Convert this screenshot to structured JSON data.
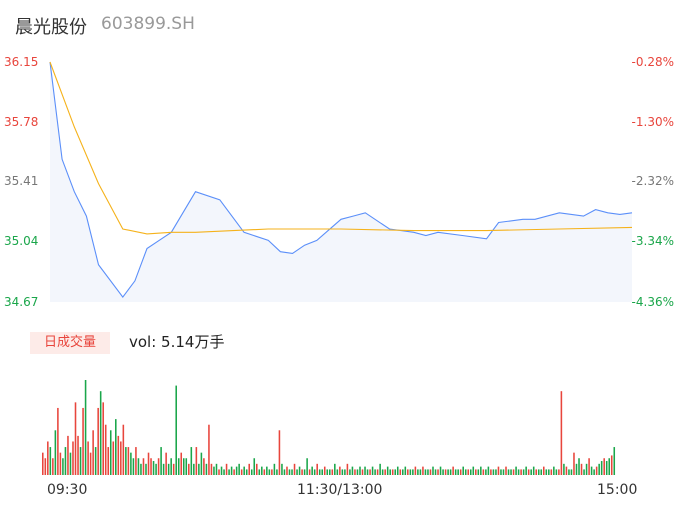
{
  "header": {
    "name": "晨光股份",
    "code": "603899.SH"
  },
  "price_axis": {
    "left_ticks": [
      "36.15",
      "35.78",
      "35.41",
      "35.04",
      "34.67"
    ],
    "right_ticks": [
      "-0.28%",
      "-1.30%",
      "-2.32%",
      "-3.34%",
      "-4.36%"
    ]
  },
  "volume_panel": {
    "badge": "日成交量",
    "vol_label": "vol: 5.14万手"
  },
  "time_axis": [
    "09:30",
    "11:30/13:00",
    "15:00"
  ],
  "colors": {
    "price_line": "#5b8ff9",
    "avg_line": "#f5b21b",
    "up": "#e8453c",
    "down": "#1aa64a",
    "flat_area": "#f3f6fc",
    "axis_text_left_up": "#e8453c"
  },
  "chart_data": [
    {
      "type": "line",
      "subtype": "intraday_price",
      "ylim": [
        34.67,
        36.15
      ],
      "pct_range": [
        -4.36,
        -0.28
      ],
      "x_range": [
        "09:30",
        "15:00"
      ],
      "series": [
        {
          "x": [
            "09:30",
            "09:35",
            "09:40",
            "09:45",
            "09:50",
            "10:00",
            "10:05",
            "10:10",
            "10:15",
            "10:20",
            "10:30",
            "10:40",
            "10:45",
            "10:50",
            "11:00",
            "11:05",
            "11:10",
            "11:15",
            "11:20",
            "11:30",
            "13:05",
            "13:10",
            "13:20",
            "13:30",
            "13:35",
            "13:40",
            "13:50",
            "14:00",
            "14:05",
            "14:15",
            "14:20",
            "14:30",
            "14:40",
            "14:45",
            "14:50",
            "14:55",
            "15:00"
          ],
          "values": [
            36.15,
            35.55,
            35.35,
            35.2,
            34.9,
            34.7,
            34.8,
            35.0,
            35.05,
            35.1,
            35.35,
            35.3,
            35.2,
            35.1,
            35.05,
            34.98,
            34.97,
            35.02,
            35.05,
            35.18,
            35.2,
            35.22,
            35.12,
            35.1,
            35.08,
            35.1,
            35.08,
            35.06,
            35.16,
            35.18,
            35.18,
            35.22,
            35.2,
            35.24,
            35.22,
            35.21,
            35.22
          ]
        },
        {
          "x": [
            "09:30",
            "09:40",
            "09:50",
            "10:00",
            "10:10",
            "10:20",
            "10:30",
            "11:00",
            "11:30",
            "13:30",
            "14:00",
            "14:30",
            "15:00"
          ],
          "values": [
            36.15,
            35.75,
            35.4,
            35.12,
            35.09,
            35.1,
            35.1,
            35.12,
            35.12,
            35.11,
            35.11,
            35.12,
            35.13
          ]
        }
      ]
    },
    {
      "type": "bar",
      "subtype": "intraday_volume",
      "total_label": "vol: 5.14万手",
      "x_range": [
        "09:30",
        "15:00"
      ],
      "values": [
        8,
        6,
        12,
        10,
        6,
        16,
        24,
        8,
        6,
        10,
        14,
        8,
        12,
        26,
        14,
        10,
        24,
        34,
        12,
        8,
        16,
        10,
        24,
        30,
        26,
        18,
        10,
        16,
        12,
        20,
        14,
        12,
        18,
        10,
        10,
        8,
        6,
        10,
        6,
        4,
        6,
        4,
        8,
        6,
        5,
        4,
        6,
        10,
        4,
        8,
        4,
        6,
        4,
        32,
        6,
        8,
        6,
        6,
        4,
        10,
        4,
        10,
        4,
        8,
        6,
        4,
        18,
        4,
        3,
        4,
        2,
        3,
        2,
        4,
        2,
        3,
        2,
        3,
        4,
        2,
        3,
        2,
        4,
        2,
        6,
        4,
        2,
        3,
        2,
        3,
        2,
        2,
        4,
        2,
        16,
        4,
        2,
        3,
        2,
        2,
        4,
        2,
        3,
        2,
        2,
        6,
        2,
        3,
        2,
        4,
        2,
        2,
        3,
        2,
        2,
        2,
        4,
        2,
        3,
        2,
        2,
        4,
        2,
        3,
        2,
        2,
        3,
        2,
        3,
        2,
        2,
        3,
        2,
        2,
        4,
        2,
        2,
        3,
        2,
        2,
        2,
        3,
        2,
        2,
        3,
        2,
        2,
        2,
        3,
        2,
        2,
        3,
        2,
        2,
        2,
        3,
        2,
        2,
        3,
        2,
        2,
        2,
        2,
        3,
        2,
        2,
        2,
        3,
        2,
        2,
        2,
        3,
        2,
        2,
        3,
        2,
        2,
        3,
        2,
        2,
        2,
        3,
        2,
        2,
        3,
        2,
        2,
        2,
        3,
        2,
        2,
        2,
        3,
        2,
        2,
        3,
        2,
        2,
        2,
        3,
        2,
        2,
        2,
        3,
        2,
        2,
        30,
        4,
        3,
        2,
        2,
        8,
        4,
        6,
        4,
        2,
        4,
        6,
        3,
        2,
        3,
        4,
        5,
        6,
        5,
        6,
        7,
        10
      ]
    }
  ]
}
